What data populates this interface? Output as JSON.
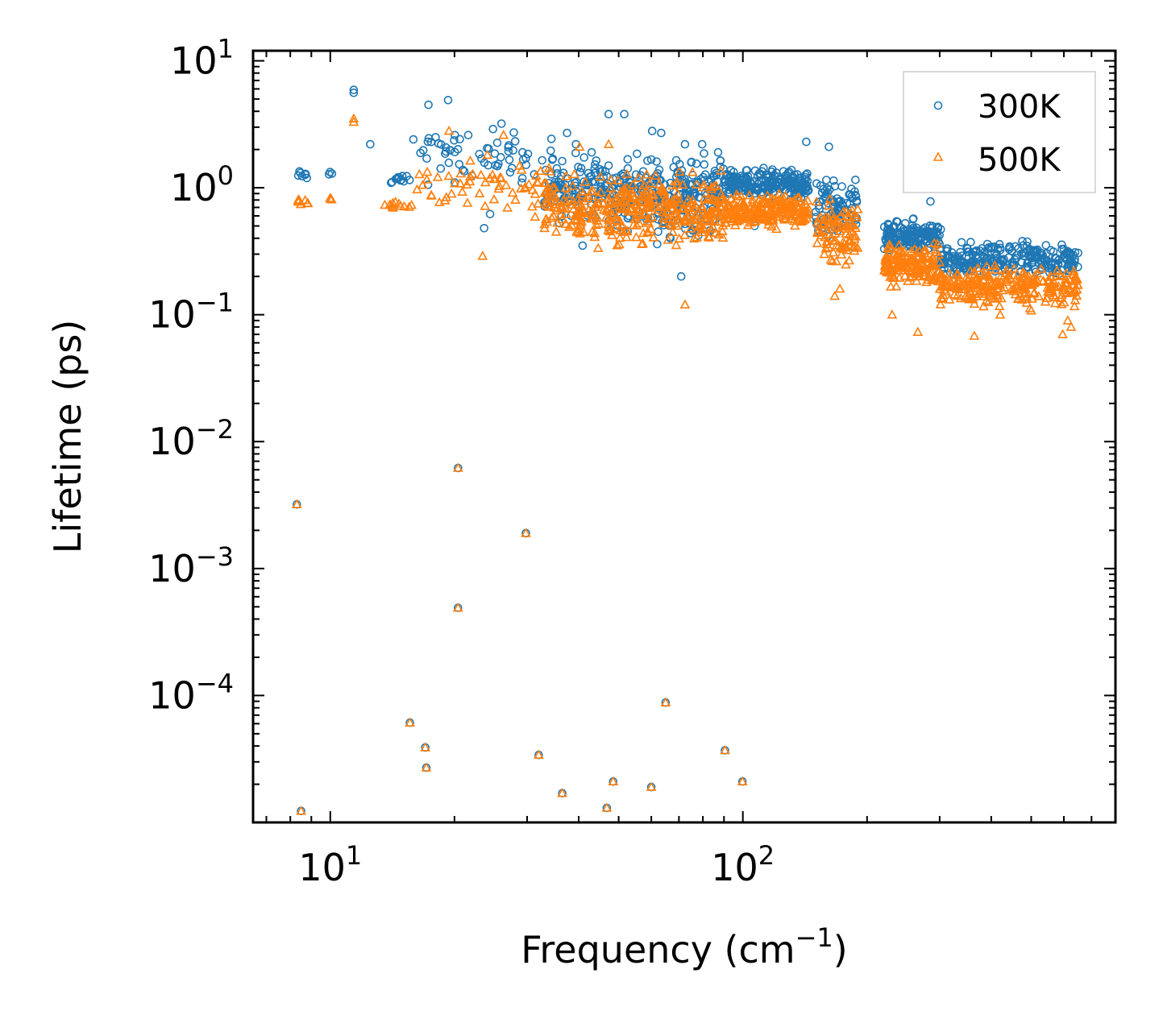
{
  "chart_data": {
    "type": "scatter",
    "title": "",
    "xlabel": "Frequency (cm",
    "xlabel_sup": "−1",
    "xlabel_tail": ")",
    "ylabel": "Lifetime (ps)",
    "xscale": "log",
    "yscale": "log",
    "xlim": [
      6.5,
      800
    ],
    "ylim": [
      1e-05,
      12
    ],
    "grid": false,
    "legend_position": "top-right",
    "x_ticks": [
      {
        "base": "10",
        "exp": "1",
        "value": 10
      },
      {
        "base": "10",
        "exp": "2",
        "value": 100
      }
    ],
    "y_ticks": [
      {
        "base": "10",
        "exp": "1",
        "value": 10
      },
      {
        "base": "10",
        "exp": "0",
        "value": 1
      },
      {
        "base": "10",
        "exp": "−1",
        "value": 0.1
      },
      {
        "base": "10",
        "exp": "−2",
        "value": 0.01
      },
      {
        "base": "10",
        "exp": "−3",
        "value": 0.001
      },
      {
        "base": "10",
        "exp": "−4",
        "value": 0.0001
      }
    ],
    "series": [
      {
        "name": "300K",
        "marker": "circle",
        "color": "#1f77b4",
        "clusters": [
          {
            "x": [
              8.3,
              8.9
            ],
            "y": [
              1.1,
              1.4
            ],
            "n": 8
          },
          {
            "x": [
              9.9,
              10.1
            ],
            "y": [
              1.2,
              1.4
            ],
            "n": 3
          },
          {
            "x": [
              13.5,
              15.8
            ],
            "y": [
              1.0,
              1.4
            ],
            "n": 12
          },
          {
            "x": [
              16,
              35
            ],
            "y": [
              0.9,
              3.2
            ],
            "n": 60
          },
          {
            "x": [
              33,
              47
            ],
            "y": [
              0.45,
              2.2
            ],
            "n": 110
          },
          {
            "x": [
              47,
              90
            ],
            "y": [
              0.35,
              2.3
            ],
            "n": 260
          },
          {
            "x": [
              90,
              145
            ],
            "y": [
              0.75,
              1.5
            ],
            "n": 220
          },
          {
            "x": [
              150,
              190
            ],
            "y": [
              0.3,
              1.5
            ],
            "n": 90
          },
          {
            "x": [
              220,
              300
            ],
            "y": [
              0.28,
              0.6
            ],
            "n": 160
          },
          {
            "x": [
              300,
              650
            ],
            "y": [
              0.18,
              0.42
            ],
            "n": 260
          }
        ],
        "x": [
          11.4,
          11.4,
          12.5,
          17.3,
          19.3,
          26.0,
          24.8,
          21.6,
          18.0,
          15.9,
          47.3,
          51.6,
          37.5,
          39.4,
          43.0,
          72.4,
          60.3,
          63.4,
          79.7,
          87.1,
          142.5,
          161.7,
          285.0,
          301.8,
          70.9,
          23.6,
          24.4,
          40.9,
          62.0,
          106.8,
          8.3,
          20.4,
          29.8,
          20.4,
          15.6,
          17.0,
          17.1,
          32.0,
          36.5,
          46.8,
          48.5,
          60.0,
          65.0,
          90.5,
          99.8,
          8.5
        ],
        "y": [
          5.9,
          5.6,
          2.2,
          4.5,
          4.9,
          3.2,
          2.9,
          2.6,
          2.5,
          2.4,
          3.8,
          3.8,
          2.7,
          2.2,
          1.9,
          2.2,
          2.8,
          2.7,
          2.2,
          1.9,
          2.3,
          2.1,
          0.78,
          0.47,
          0.2,
          0.48,
          0.62,
          0.35,
          0.36,
          0.5,
          0.0032,
          0.0062,
          0.0019,
          0.00049,
          6.1e-05,
          3.9e-05,
          2.7e-05,
          3.4e-05,
          1.7e-05,
          1.3e-05,
          2.1e-05,
          1.9e-05,
          8.8e-05,
          3.7e-05,
          2.1e-05,
          1.23e-05
        ]
      },
      {
        "name": "500K",
        "marker": "triangle",
        "color": "#ff7f0e",
        "clusters": [
          {
            "x": [
              8.3,
              8.9
            ],
            "y": [
              0.72,
              0.85
            ],
            "n": 8
          },
          {
            "x": [
              9.9,
              10.1
            ],
            "y": [
              0.72,
              0.85
            ],
            "n": 3
          },
          {
            "x": [
              13.5,
              15.8
            ],
            "y": [
              0.65,
              0.85
            ],
            "n": 12
          },
          {
            "x": [
              16,
              35
            ],
            "y": [
              0.5,
              2.2
            ],
            "n": 60
          },
          {
            "x": [
              33,
              47
            ],
            "y": [
              0.3,
              1.5
            ],
            "n": 110
          },
          {
            "x": [
              47,
              90
            ],
            "y": [
              0.28,
              1.6
            ],
            "n": 260
          },
          {
            "x": [
              90,
              145
            ],
            "y": [
              0.45,
              1.0
            ],
            "n": 220
          },
          {
            "x": [
              150,
              190
            ],
            "y": [
              0.2,
              0.9
            ],
            "n": 90
          },
          {
            "x": [
              220,
              300
            ],
            "y": [
              0.15,
              0.4
            ],
            "n": 160
          },
          {
            "x": [
              300,
              650
            ],
            "y": [
              0.1,
              0.28
            ],
            "n": 260
          }
        ],
        "x": [
          11.4,
          11.4,
          19.4,
          26.3,
          47.3,
          40.2,
          23.4,
          72.4,
          167.0,
          171.9,
          230.0,
          265.5,
          364.0,
          420.5,
          595.8,
          624.6,
          612.9,
          8.3,
          20.4,
          29.8,
          20.4,
          15.6,
          17.0,
          17.1,
          32.0,
          36.5,
          46.8,
          48.5,
          60.0,
          65.0,
          90.5,
          99.8,
          8.5
        ],
        "y": [
          3.5,
          3.3,
          2.8,
          2.6,
          2.2,
          2.1,
          0.29,
          0.12,
          0.14,
          0.16,
          0.1,
          0.073,
          0.068,
          0.1,
          0.07,
          0.08,
          0.09,
          0.0032,
          0.0062,
          0.0019,
          0.00049,
          6.1e-05,
          3.9e-05,
          2.7e-05,
          3.4e-05,
          1.7e-05,
          1.3e-05,
          2.1e-05,
          1.9e-05,
          8.8e-05,
          3.7e-05,
          2.1e-05,
          1.23e-05
        ]
      }
    ]
  }
}
